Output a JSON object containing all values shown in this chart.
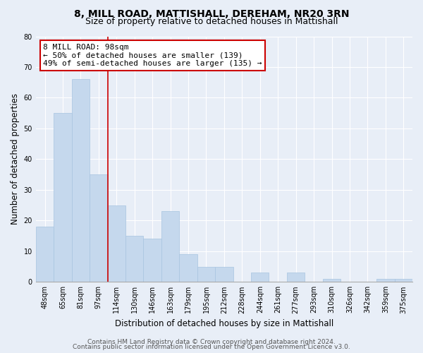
{
  "title": "8, MILL ROAD, MATTISHALL, DEREHAM, NR20 3RN",
  "subtitle": "Size of property relative to detached houses in Mattishall",
  "xlabel": "Distribution of detached houses by size in Mattishall",
  "ylabel": "Number of detached properties",
  "bar_labels": [
    "48sqm",
    "65sqm",
    "81sqm",
    "97sqm",
    "114sqm",
    "130sqm",
    "146sqm",
    "163sqm",
    "179sqm",
    "195sqm",
    "212sqm",
    "228sqm",
    "244sqm",
    "261sqm",
    "277sqm",
    "293sqm",
    "310sqm",
    "326sqm",
    "342sqm",
    "359sqm",
    "375sqm"
  ],
  "bar_values": [
    18,
    55,
    66,
    35,
    25,
    15,
    14,
    23,
    9,
    5,
    5,
    0,
    3,
    0,
    3,
    0,
    1,
    0,
    0,
    1,
    1
  ],
  "bar_color": "#c5d8ed",
  "bar_edge_color": "#a8c4e0",
  "highlight_line_index": 3,
  "highlight_line_color": "#cc0000",
  "annotation_title": "8 MILL ROAD: 98sqm",
  "annotation_line1": "← 50% of detached houses are smaller (139)",
  "annotation_line2": "49% of semi-detached houses are larger (135) →",
  "annotation_box_facecolor": "#ffffff",
  "annotation_box_edgecolor": "#cc0000",
  "ylim": [
    0,
    80
  ],
  "yticks": [
    0,
    10,
    20,
    30,
    40,
    50,
    60,
    70,
    80
  ],
  "footer_line1": "Contains HM Land Registry data © Crown copyright and database right 2024.",
  "footer_line2": "Contains public sector information licensed under the Open Government Licence v3.0.",
  "bg_color": "#e8eef7",
  "plot_bg_color": "#e8eef7",
  "grid_color": "#ffffff",
  "title_fontsize": 10,
  "subtitle_fontsize": 9,
  "axis_label_fontsize": 8.5,
  "tick_fontsize": 7,
  "annotation_fontsize": 8,
  "footer_fontsize": 6.5
}
